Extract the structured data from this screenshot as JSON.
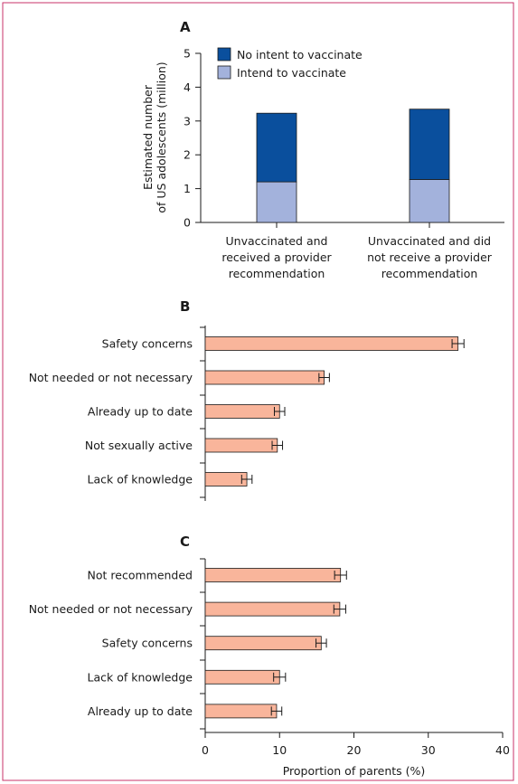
{
  "chart_data": [
    {
      "type": "bar",
      "stacked": true,
      "panel": "A",
      "ylabel": "Estimated number\nof US adolescents (million)",
      "ylim": [
        0,
        5
      ],
      "yticks": [
        0,
        1,
        2,
        3,
        4,
        5
      ],
      "categories": [
        "Unvaccinated and\nreceived a provider\nrecommendation",
        "Unvaccinated and did\nnot receive a provider\nrecommendation"
      ],
      "series": [
        {
          "name": "Intend to vaccinate",
          "values": [
            1.2,
            1.27
          ],
          "color": "#a3b2dc"
        },
        {
          "name": "No intent to vaccinate",
          "values": [
            2.03,
            2.08
          ],
          "color": "#0a4f9d"
        }
      ],
      "legend": {
        "position": "top-left",
        "entries": [
          "No intent to vaccinate",
          "Intend to vaccinate"
        ]
      },
      "grid": false
    },
    {
      "type": "bar",
      "orientation": "horizontal",
      "panel": "B",
      "categories": [
        "Safety concerns",
        "Not needed or not necessary",
        "Already up to date",
        "Not sexually active",
        "Lack of knowledge"
      ],
      "values": [
        34,
        16,
        10,
        9.7,
        5.6
      ],
      "errors": [
        0.8,
        0.7,
        0.7,
        0.7,
        0.7
      ],
      "color": "#f9b59b",
      "xlim": [
        0,
        40
      ],
      "grid": false
    },
    {
      "type": "bar",
      "orientation": "horizontal",
      "panel": "C",
      "categories": [
        "Not recommended",
        "Not needed or not necessary",
        "Safety concerns",
        "Lack of knowledge",
        "Already up to date"
      ],
      "values": [
        18.2,
        18.1,
        15.6,
        10,
        9.6
      ],
      "errors": [
        0.8,
        0.8,
        0.7,
        0.8,
        0.7
      ],
      "color": "#f9b59b",
      "xlabel": "Proportion of parents (%)",
      "xlim": [
        0,
        40
      ],
      "xticks": [
        0,
        10,
        20,
        30,
        40
      ],
      "grid": false
    }
  ],
  "colors": {
    "frame": "#c9336a",
    "error_bar": "#1a1a1a",
    "axis": "#1a1a1a"
  }
}
